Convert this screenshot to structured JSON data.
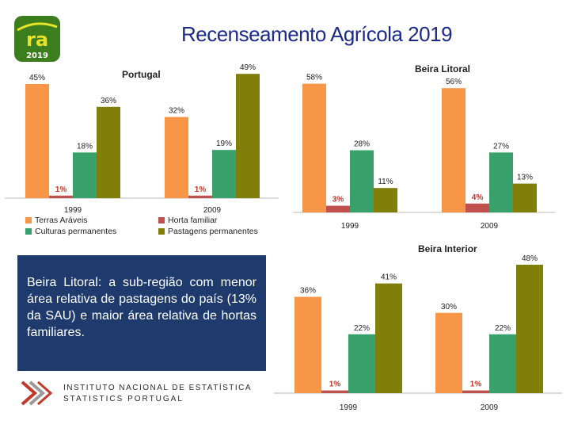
{
  "header": {
    "title": "Recenseamento Agrícola 2019",
    "logo_text": "ra",
    "logo_year": "2019"
  },
  "colors": {
    "Terras Aráveis": "#f79646",
    "Horta familiar": "#c0504d",
    "Culturas permanentes": "#37a06b",
    "Pastagens permanentes": "#7f7f0a"
  },
  "legend": {
    "items": [
      "Terras Aráveis",
      "Horta familiar",
      "Culturas permanentes",
      "Pastagens permanentes"
    ]
  },
  "chart_data": [
    {
      "type": "bar",
      "title": "Portugal",
      "categories": [
        "1999",
        "2009"
      ],
      "series": [
        {
          "name": "Terras Aráveis",
          "values": [
            45,
            32
          ]
        },
        {
          "name": "Horta familiar",
          "values": [
            1,
            1
          ]
        },
        {
          "name": "Culturas permanentes",
          "values": [
            18,
            19
          ]
        },
        {
          "name": "Pastagens permanentes",
          "values": [
            36,
            49
          ]
        }
      ],
      "ylim": [
        0,
        50
      ]
    },
    {
      "type": "bar",
      "title": "Beira Litoral",
      "categories": [
        "1999",
        "2009"
      ],
      "series": [
        {
          "name": "Terras Aráveis",
          "values": [
            58,
            56
          ]
        },
        {
          "name": "Horta familiar",
          "values": [
            3,
            4
          ]
        },
        {
          "name": "Culturas permanentes",
          "values": [
            28,
            27
          ]
        },
        {
          "name": "Pastagens permanentes",
          "values": [
            11,
            13
          ]
        }
      ],
      "ylim": [
        0,
        60
      ]
    },
    {
      "type": "bar",
      "title": "Beira Interior",
      "categories": [
        "1999",
        "2009"
      ],
      "series": [
        {
          "name": "Terras Aráveis",
          "values": [
            36,
            30
          ]
        },
        {
          "name": "Horta familiar",
          "values": [
            1,
            1
          ]
        },
        {
          "name": "Culturas permanentes",
          "values": [
            22,
            22
          ]
        },
        {
          "name": "Pastagens permanentes",
          "values": [
            41,
            48
          ]
        }
      ],
      "ylim": [
        0,
        48
      ]
    }
  ],
  "note": {
    "text": "Beira Litoral: a sub-região com menor área relativa de pastagens do país (13% da SAU) e maior área relativa de hortas familiares."
  },
  "footer": {
    "org_line1": "INSTITUTO NACIONAL DE ESTATÍSTICA",
    "org_line2": "STATISTICS PORTUGAL"
  }
}
